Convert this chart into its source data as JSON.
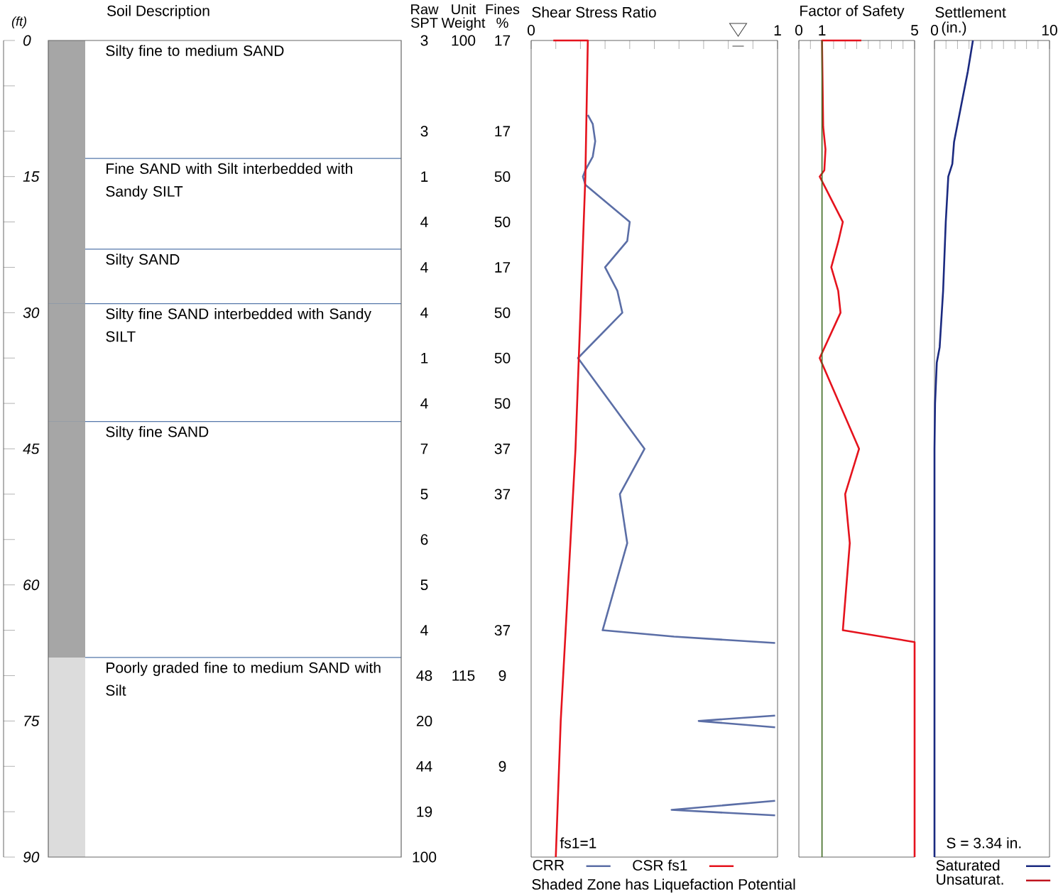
{
  "chart_data": [
    {
      "type": "bar",
      "stacked": true,
      "title": "Soil Description",
      "ylabel": "(ft)",
      "categories": [
        null
      ],
      "ylim": [
        90,
        0
      ],
      "yticks": [
        0,
        15,
        30,
        45,
        60,
        75,
        90
      ],
      "tick_labels": "y",
      "series": [
        {
          "name": "Silty fine to medium SAND",
          "color": "#a6a6a6",
          "values": [
            13
          ]
        },
        {
          "name": "Fine SAND with Silt interbedded with Sandy SILT",
          "color": "#a6a6a6",
          "values": [
            10
          ]
        },
        {
          "name": "Silty SAND",
          "color": "#a6a6a6",
          "values": [
            6
          ]
        },
        {
          "name": "Silty fine SAND interbedded with Sandy SILT",
          "color": "#a6a6a6",
          "values": [
            13
          ]
        },
        {
          "name": "Silty fine SAND",
          "color": "#a6a6a6",
          "values": [
            26
          ]
        },
        {
          "name": "Poorly graded fine to medium SAND with Silt",
          "color": "#dcdcdc",
          "values": [
            22
          ]
        }
      ],
      "ref_lines": [
        {
          "axis": "y",
          "value": 13,
          "color": "#5577aa"
        },
        {
          "axis": "y",
          "value": 23,
          "color": "#5577aa"
        },
        {
          "axis": "y",
          "value": 29,
          "color": "#5577aa"
        },
        {
          "axis": "y",
          "value": 42,
          "color": "#5577aa"
        },
        {
          "axis": "y",
          "value": 68,
          "color": "#5577aa"
        }
      ]
    },
    {
      "type": "other",
      "categories": [
        "Raw SPT",
        "Unit Weight",
        "Fines %"
      ],
      "y_categories": [
        null,
        null,
        null,
        null,
        null,
        null,
        null,
        null,
        null,
        null,
        null,
        null,
        null,
        null,
        null,
        null,
        null,
        null,
        null
      ],
      "cell_labels": [
        [
          "3",
          "100",
          "17"
        ],
        [
          null,
          null,
          null
        ],
        [
          "3",
          null,
          "17"
        ],
        [
          "1",
          null,
          "50"
        ],
        [
          "4",
          null,
          "50"
        ],
        [
          "4",
          null,
          "17"
        ],
        [
          "4",
          null,
          "50"
        ],
        [
          "1",
          null,
          "50"
        ],
        [
          "4",
          null,
          "50"
        ],
        [
          "7",
          null,
          "37"
        ],
        [
          "5",
          null,
          "37"
        ],
        [
          "6",
          null,
          null
        ],
        [
          "5",
          null,
          null
        ],
        [
          "4",
          null,
          "37"
        ],
        [
          "48",
          "115",
          "9"
        ],
        [
          "20",
          null,
          null
        ],
        [
          "44",
          null,
          "9"
        ],
        [
          "19",
          null,
          null
        ],
        [
          "100",
          null,
          null
        ]
      ]
    },
    {
      "type": "line",
      "orientation": "horizontal",
      "title": "Shear Stress Ratio",
      "xlim": [
        0,
        1
      ],
      "xticks": [
        0,
        {
          "value": 0.1,
          "label": null
        },
        {
          "value": 0.2,
          "label": null
        },
        {
          "value": 0.3,
          "label": null
        },
        {
          "value": 0.4,
          "label": null
        },
        {
          "value": 0.5,
          "label": null
        },
        {
          "value": 0.6,
          "label": null
        },
        {
          "value": 0.7,
          "label": null
        },
        {
          "value": 0.8,
          "label": null
        },
        {
          "value": 0.9,
          "label": null
        },
        1
      ],
      "ylim": [
        90,
        0
      ],
      "tick_labels": "x",
      "legend": "bottom",
      "series": [
        {
          "name": "CRR",
          "color": "#5b6ea6",
          "x": [
            8.2,
            9.2,
            11.1,
            12.8,
            14.3,
            15,
            15.9,
            20,
            22.1,
            25,
            27.6,
            30,
            35,
            45,
            50,
            55.4,
            65,
            65.7,
            66.4,
            null,
            74.4,
            75,
            75.7,
            null,
            83.8,
            84.8,
            85.4
          ],
          "values": [
            0.23,
            0.25,
            0.26,
            0.25,
            0.22,
            0.21,
            0.22,
            0.4,
            0.39,
            0.3,
            0.35,
            0.37,
            0.19,
            0.46,
            0.36,
            0.39,
            0.29,
            0.58,
            0.99,
            null,
            0.99,
            0.68,
            0.99,
            null,
            0.99,
            0.57,
            0.99
          ]
        },
        {
          "name": "CSR fs1",
          "color": "#e5131d",
          "x": [
            0,
            0,
            15,
            30,
            45,
            60,
            75,
            90
          ],
          "values": [
            0.09,
            0.23,
            0.22,
            0.2,
            0.18,
            0.15,
            0.12,
            0.1
          ]
        }
      ],
      "annotations": [
        "fs1=1",
        "Shaded Zone has Liquefaction Potential"
      ]
    },
    {
      "type": "line",
      "orientation": "horizontal",
      "title": "Factor of Safety",
      "xlim": [
        0,
        5
      ],
      "xticks": [
        0,
        {
          "value": 0.5,
          "label": null
        },
        1,
        {
          "value": 1.5,
          "label": null
        },
        {
          "value": 2,
          "label": null
        },
        {
          "value": 2.5,
          "label": null
        },
        {
          "value": 3,
          "label": null
        },
        {
          "value": 3.5,
          "label": null
        },
        {
          "value": 4,
          "label": null
        },
        {
          "value": 4.5,
          "label": null
        },
        5
      ],
      "ylim": [
        90,
        0
      ],
      "tick_labels": "x",
      "ref_lines": [
        {
          "axis": "x",
          "value": 1,
          "color": "#3f6b22"
        }
      ],
      "series": [
        {
          "color": "#e5131d",
          "x": [
            0,
            0,
            9.5,
            12,
            14.3,
            15,
            20,
            22.2,
            25,
            27.6,
            30,
            35,
            45,
            50,
            55.4,
            65,
            66.3,
            90
          ],
          "values": [
            2.7,
            1.0,
            1.05,
            1.15,
            1.1,
            0.9,
            1.9,
            1.7,
            1.4,
            1.7,
            1.8,
            0.9,
            2.6,
            2.0,
            2.2,
            1.9,
            5,
            5
          ]
        }
      ]
    },
    {
      "type": "line",
      "orientation": "horizontal",
      "title": "Settlement",
      "xlabel": "(in.)",
      "xlim": [
        0,
        10
      ],
      "xticks": [
        0,
        {
          "value": 1,
          "label": null
        },
        {
          "value": 2,
          "label": null
        },
        {
          "value": 3,
          "label": null
        },
        {
          "value": 4,
          "label": null
        },
        {
          "value": 5,
          "label": null
        },
        {
          "value": 6,
          "label": null
        },
        {
          "value": 7,
          "label": null
        },
        {
          "value": 8,
          "label": null
        },
        {
          "value": 9,
          "label": null
        },
        10
      ],
      "ylim": [
        90,
        0
      ],
      "tick_labels": "x",
      "legend": "bottom",
      "series": [
        {
          "name": "Saturated",
          "color": "#1b2a80",
          "x": [
            0,
            3.4,
            7.3,
            11.2,
            13.6,
            15,
            20,
            27.6,
            33.8,
            35.5,
            40,
            45,
            90
          ],
          "values": [
            3.34,
            2.9,
            2.3,
            1.7,
            1.55,
            1.2,
            0.98,
            0.75,
            0.45,
            0.2,
            0.05,
            0,
            0
          ]
        },
        {
          "name": "Unsaturat.",
          "color": "#c0141e",
          "x": [
            null
          ],
          "values": [
            null
          ]
        }
      ],
      "annotations": [
        "S = 3.34 in."
      ]
    }
  ]
}
